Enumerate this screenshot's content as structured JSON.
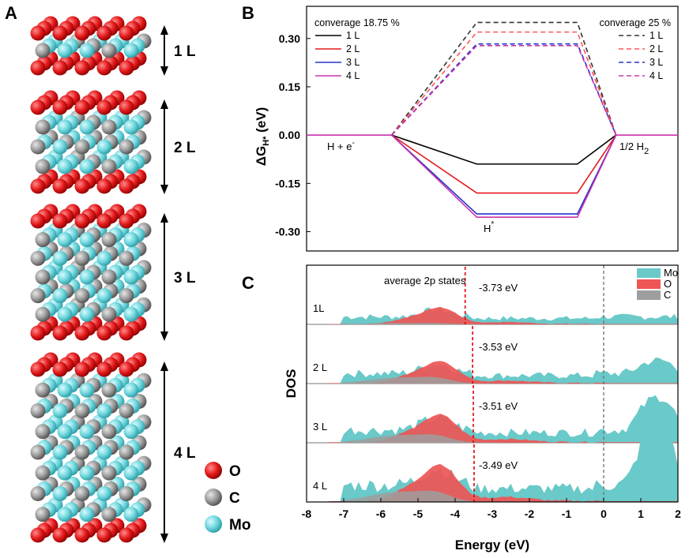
{
  "panels": {
    "A": "A",
    "B": "B",
    "C": "C"
  },
  "structures": {
    "layers": [
      {
        "label": "1 L",
        "n": 1
      },
      {
        "label": "2 L",
        "n": 2
      },
      {
        "label": "3 L",
        "n": 3
      },
      {
        "label": "4 L",
        "n": 4
      }
    ],
    "atoms": [
      {
        "name": "O",
        "color": "#e41a1c"
      },
      {
        "name": "C",
        "color": "#8c8c8c"
      },
      {
        "name": "Mo",
        "color": "#6fd6dd"
      }
    ]
  },
  "chart_data": [
    {
      "panel": "B",
      "type": "line",
      "ylabel_main": "ΔG",
      "ylabel_sub": "H*",
      "ylabel_unit": " (eV)",
      "ylim": [
        -0.36,
        0.4
      ],
      "xlim": [
        0,
        4.8
      ],
      "yticks": [
        "0.30",
        "0.15",
        "0.00",
        "-0.15",
        "-0.30"
      ],
      "ytick_values": [
        0.3,
        0.15,
        0.0,
        -0.15,
        -0.3
      ],
      "annotations": {
        "left": "H + e",
        "left_sup": "-",
        "right": "1/2 H",
        "right_sub": "2",
        "middle": "H",
        "middle_sup": "*"
      },
      "legend_left_title": "converage 18.75 %",
      "legend_right_title": "converage 25 %",
      "solid_series": [
        {
          "name": "1 L",
          "color": "#000000",
          "value": -0.09
        },
        {
          "name": "2 L",
          "color": "#e41a1c",
          "value": -0.18
        },
        {
          "name": "3 L",
          "color": "#2233cc",
          "value": -0.245
        },
        {
          "name": "4 L",
          "color": "#cc33aa",
          "value": -0.255
        }
      ],
      "dashed_series": [
        {
          "name": "1 L",
          "color": "#333333",
          "value": 0.35
        },
        {
          "name": "2 L",
          "color": "#ff5555",
          "value": 0.32
        },
        {
          "name": "3 L",
          "color": "#2233cc",
          "value": 0.283
        },
        {
          "name": "4 L",
          "color": "#cc33aa",
          "value": 0.278
        }
      ]
    },
    {
      "panel": "C",
      "type": "area",
      "xlabel": "Energy (eV)",
      "ylabel": "DOS",
      "xlim": [
        -8,
        2
      ],
      "xticks": [
        "-8",
        "-7",
        "-6",
        "-5",
        "-4",
        "-3",
        "-2",
        "-1",
        "0",
        "1",
        "2"
      ],
      "xtick_values": [
        -8,
        -7,
        -6,
        -5,
        -4,
        -3,
        -2,
        -1,
        0,
        1,
        2
      ],
      "average_label": "average 2p states",
      "fermi_level": 0,
      "legend": [
        {
          "name": "Mo",
          "color": "#6ac9c9"
        },
        {
          "name": "O",
          "color": "#ee5555"
        },
        {
          "name": "C",
          "color": "#9e9e9e"
        }
      ],
      "rows": [
        {
          "label": "1L",
          "center_value": -3.73,
          "center_text": "-3.73 eV"
        },
        {
          "label": "2 L",
          "center_value": -3.53,
          "center_text": "-3.53 eV"
        },
        {
          "label": "3 L",
          "center_value": -3.51,
          "center_text": "-3.51 eV"
        },
        {
          "label": "4 L",
          "center_value": -3.49,
          "center_text": "-3.49 eV"
        }
      ]
    }
  ]
}
